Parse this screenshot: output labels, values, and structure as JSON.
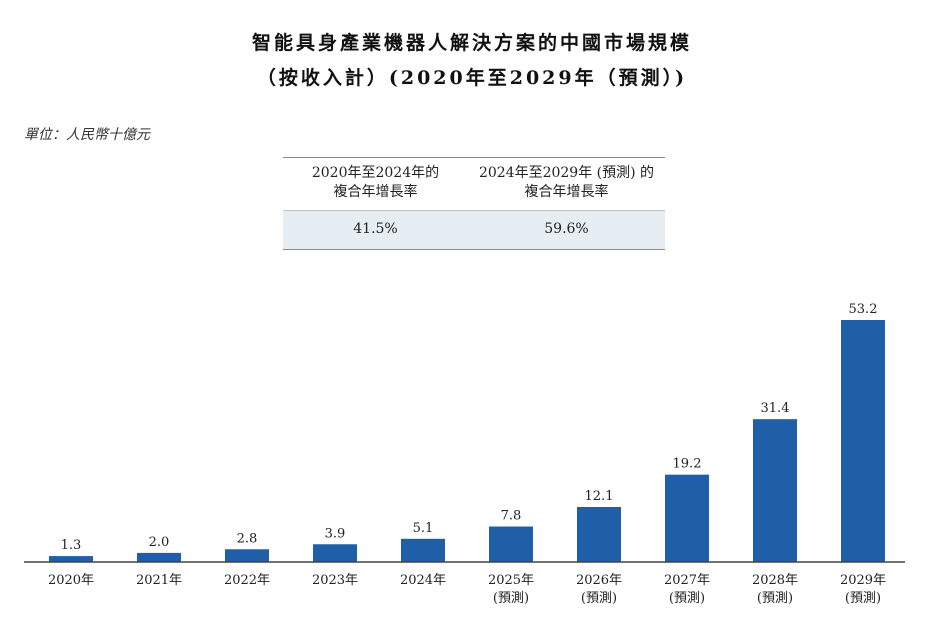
{
  "chart_data": {
    "type": "bar",
    "title": "智能具身產業機器人解決方案的中國市場規模",
    "subtitle": "（按收入計）(2020年至2029年（預測）)",
    "unit": "單位：人民幣十億元",
    "categories": [
      {
        "line1": "2020年",
        "line2": ""
      },
      {
        "line1": "2021年",
        "line2": ""
      },
      {
        "line1": "2022年",
        "line2": ""
      },
      {
        "line1": "2023年",
        "line2": ""
      },
      {
        "line1": "2024年",
        "line2": ""
      },
      {
        "line1": "2025年",
        "line2": "(預測)"
      },
      {
        "line1": "2026年",
        "line2": "(預測)"
      },
      {
        "line1": "2027年",
        "line2": "(預測)"
      },
      {
        "line1": "2028年",
        "line2": "(預測)"
      },
      {
        "line1": "2029年",
        "line2": "(預測)"
      }
    ],
    "values": [
      1.3,
      2.0,
      2.8,
      3.9,
      5.1,
      7.8,
      12.1,
      19.2,
      31.4,
      53.2
    ],
    "value_labels": [
      "1.3",
      "2.0",
      "2.8",
      "3.9",
      "5.1",
      "7.8",
      "12.1",
      "19.2",
      "31.4",
      "53.2"
    ],
    "ylim": [
      0,
      53.2
    ],
    "bar_color": "#1f5fa8",
    "grid": false,
    "cagr_table": {
      "headers": [
        {
          "line1": "2020年至2024年的",
          "line2": "複合年增長率"
        },
        {
          "line1": "2024年至2029年 (預測) 的",
          "line2": "複合年增長率"
        }
      ],
      "values": [
        "41.5%",
        "59.6%"
      ]
    }
  }
}
